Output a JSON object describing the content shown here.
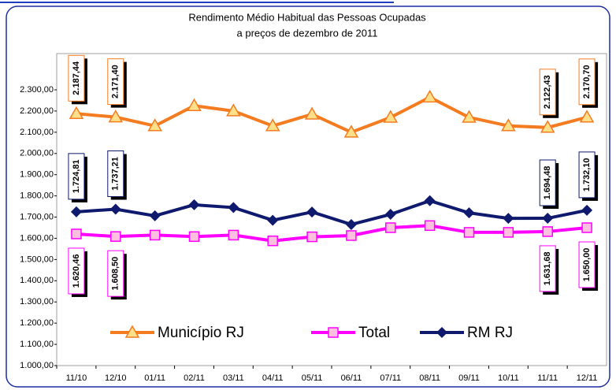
{
  "chart_data": {
    "type": "line",
    "title": "Rendimento Médio Habitual das Pessoas Ocupadas",
    "subtitle": "a preços de dezembro de 2011",
    "categories": [
      "11/10",
      "12/10",
      "01/11",
      "02/11",
      "03/11",
      "04/11",
      "05/11",
      "06/11",
      "07/11",
      "08/11",
      "09/11",
      "10/11",
      "11/11",
      "12/11"
    ],
    "series": [
      {
        "name": "Município RJ",
        "color": "#f47b20",
        "marker": "triangle",
        "label_side": "above",
        "values": [
          2187.44,
          2171.4,
          2130,
          2225,
          2200,
          2130,
          2185,
          2100,
          2170,
          2265,
          2170,
          2130,
          2122.43,
          2170.7
        ],
        "value_labels": [
          "2.187,44",
          "2.171,40",
          null,
          null,
          null,
          null,
          null,
          null,
          null,
          null,
          null,
          null,
          "2.122,43",
          "2.170,70"
        ]
      },
      {
        "name": "Total",
        "color": "#ff00ff",
        "marker": "square",
        "label_side": "below",
        "values": [
          1620.46,
          1608.5,
          1615,
          1608,
          1615,
          1588,
          1607,
          1613,
          1650,
          1660,
          1628,
          1628,
          1631.68,
          1650.0
        ],
        "value_labels": [
          "1.620,46",
          "1.608,50",
          null,
          null,
          null,
          null,
          null,
          null,
          null,
          null,
          null,
          null,
          "1.631,68",
          "1.650,00"
        ]
      },
      {
        "name": "RM RJ",
        "color": "#0f1a6e",
        "marker": "diamond",
        "label_side": "above",
        "values": [
          1724.81,
          1737.21,
          1706,
          1758,
          1745,
          1685,
          1724,
          1665,
          1713,
          1777,
          1720,
          1694,
          1694.48,
          1732.1
        ],
        "value_labels": [
          "1.724,81",
          "1.737,21",
          null,
          null,
          null,
          null,
          null,
          null,
          null,
          null,
          null,
          null,
          "1.694,48",
          "1.732,10"
        ]
      }
    ],
    "ylim": [
      1000,
      2300
    ],
    "yticks": [
      {
        "value": 1000,
        "label": "1.000,00"
      },
      {
        "value": 1100,
        "label": "1.100,00"
      },
      {
        "value": 1200,
        "label": "1.200,00"
      },
      {
        "value": 1300,
        "label": "1.300,00"
      },
      {
        "value": 1400,
        "label": "1.400,00"
      },
      {
        "value": 1500,
        "label": "1.500,00"
      },
      {
        "value": 1600,
        "label": "1.600,00"
      },
      {
        "value": 1700,
        "label": "1.700,00"
      },
      {
        "value": 1800,
        "label": "1.800,00"
      },
      {
        "value": 1900,
        "label": "1.900,00"
      },
      {
        "value": 2000,
        "label": "2.000,00"
      },
      {
        "value": 2100,
        "label": "2.100,00"
      },
      {
        "value": 2200,
        "label": "2.200,00"
      },
      {
        "value": 2300,
        "label": "2.300,00"
      }
    ],
    "legend": "bottom"
  }
}
